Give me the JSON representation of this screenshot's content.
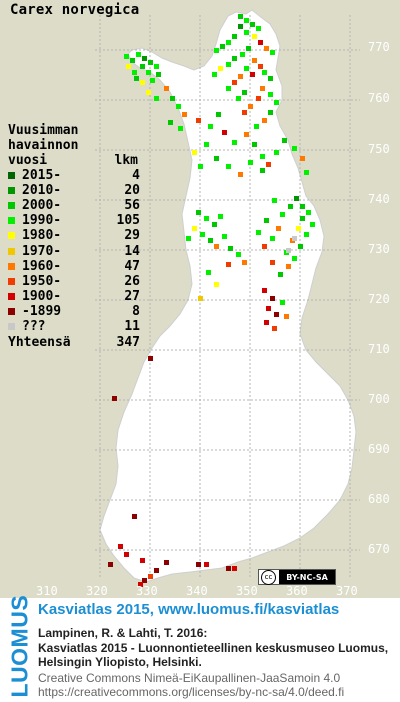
{
  "species": "Carex norvegica",
  "legend": {
    "header_lines": [
      "Vuusimman",
      "havainnon"
    ],
    "header_col1": "vuosi",
    "header_col2": "lkm",
    "rows": [
      {
        "year": "2015-",
        "count": "4",
        "color": "#006400"
      },
      {
        "year": "2010-",
        "count": "20",
        "color": "#009600"
      },
      {
        "year": "2000-",
        "count": "56",
        "color": "#00c800"
      },
      {
        "year": "1990-",
        "count": "105",
        "color": "#00f000"
      },
      {
        "year": "1980-",
        "count": "29",
        "color": "#ffff00"
      },
      {
        "year": "1970-",
        "count": "14",
        "color": "#f0c800"
      },
      {
        "year": "1960-",
        "count": "47",
        "color": "#ff7800"
      },
      {
        "year": "1950-",
        "count": "26",
        "color": "#f03c00"
      },
      {
        "year": "1900-",
        "count": "27",
        "color": "#d20000"
      },
      {
        "year": "-1899",
        "count": "8",
        "color": "#8c0000"
      },
      {
        "year": "???",
        "count": "11",
        "color": "#c8c8c8"
      }
    ],
    "total_label": "Yhteensä",
    "total_count": "347"
  },
  "lat_labels": [
    "770",
    "760",
    "750",
    "740",
    "730",
    "720",
    "710",
    "700",
    "690",
    "680",
    "670"
  ],
  "lon_labels": [
    "310",
    "320",
    "330",
    "340",
    "350",
    "360",
    "370"
  ],
  "license_badge": "BY-NC-SA",
  "license_cc": "cc",
  "footer": {
    "logo": "LUOMUS",
    "title": "Kasviatlas 2015, www.luomus.fi/kasviatlas",
    "ref_authors": "Lampinen, R. & Lahti, T. 2016:",
    "ref_line1": "Kasviatlas 2015 - Luonnontieteellinen keskusmuseo Luomus,",
    "ref_line2": "Helsingin Yliopisto, Helsinki.",
    "license_line1": "Creative Commons Nimeä-EiKaupallinen-JaaSamoin 4.0",
    "license_line2": "https://creativecommons.org/licenses/by-nc-sa/4.0/deed.fi"
  },
  "colors": {
    "background": "#dcdcc8",
    "land": "#ffffff",
    "grid": "#b4b4b4",
    "labels": "#ffffff",
    "brand": "#1c8fd4"
  }
}
